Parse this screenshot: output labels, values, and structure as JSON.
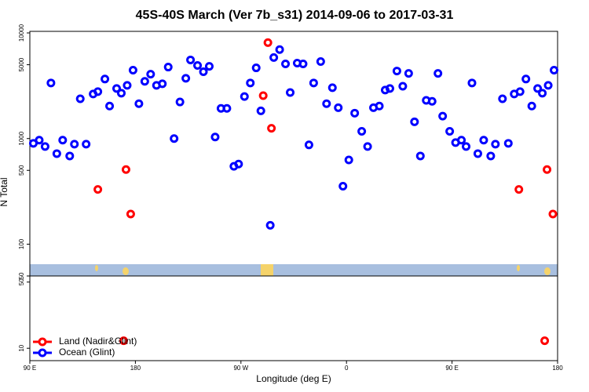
{
  "chart_data": [
    {
      "type": "scatter",
      "title": "45S-40S March (Ver 7b_s31)   2014-09-06 to 2017-03-31",
      "ylabel": "N Total",
      "xlim": [
        90,
        540
      ],
      "ylim": [
        50,
        10000
      ],
      "log_y": true,
      "yticks": [
        50,
        100,
        500,
        1000,
        5000,
        10000
      ],
      "series": [
        {
          "color": "#0000ff",
          "x": [
            93,
            98,
            103,
            108,
            113,
            118,
            124,
            128,
            133,
            138,
            144,
            148,
            154,
            158,
            164,
            168,
            173,
            178,
            183,
            188,
            193,
            198,
            203,
            208,
            213,
            218,
            223,
            227,
            233,
            238,
            243,
            248,
            253,
            258,
            264,
            268,
            273,
            278,
            283,
            287,
            295,
            298,
            303,
            308,
            312,
            318,
            323,
            328,
            332,
            338,
            343,
            348,
            353,
            357,
            362,
            367,
            373,
            378,
            383,
            388,
            393,
            397,
            403,
            408,
            413,
            418,
            423,
            428,
            433,
            438,
            442,
            448,
            453,
            458,
            462,
            467,
            472,
            477,
            483,
            487,
            493,
            498,
            503,
            508,
            513,
            518,
            523,
            527,
            532,
            537
          ],
          "values": [
            901,
            966,
            841,
            3360,
            720,
            966,
            684,
            885,
            2380,
            885,
            2640,
            2780,
            3660,
            2030,
            2980,
            2690,
            3190,
            4440,
            2140,
            3480,
            4070,
            3190,
            3300,
            4750,
            1000,
            2220,
            3720,
            5550,
            4920,
            4290,
            4830,
            1035,
            1930,
            1930,
            546,
            574,
            2500,
            3360,
            4670,
            1830,
            151,
            5850,
            6950,
            5090,
            2730,
            5180,
            5090,
            871,
            3360,
            5360,
            2140,
            3030,
            1960,
            354,
            627,
            1740,
            1170,
            841,
            1960,
            2030,
            2880,
            2980,
            4360,
            3130,
            4140,
            1440,
            684,
            2300,
            2250,
            4140,
            1630,
            1170,
            916,
            966,
            841,
            3360,
            720,
            966,
            684,
            885,
            2380,
            901,
            2640,
            2780,
            3660,
            2030,
            2980,
            2690,
            3190,
            4440
          ]
        },
        {
          "color": "#ff0000",
          "x": [
            148,
            172,
            176,
            289,
            293,
            296,
            507,
            531,
            536
          ],
          "values": [
            330,
            509,
            193,
            2550,
            8100,
            1250,
            330,
            509,
            193
          ]
        }
      ]
    },
    {
      "type": "scatter",
      "xlabel": "Longitude (deg E)",
      "xlim": [
        90,
        540
      ],
      "ylim": [
        7.4,
        58
      ],
      "log_y": true,
      "yticks": [
        10,
        50
      ],
      "xticks": [
        {
          "value": 90,
          "label": "90 E"
        },
        {
          "value": 180,
          "label": "180"
        },
        {
          "value": 270,
          "label": "90 W"
        },
        {
          "value": 360,
          "label": "0"
        },
        {
          "value": 450,
          "label": "90 E"
        },
        {
          "value": 540,
          "label": "180"
        }
      ],
      "legend": "lower left",
      "series": [
        {
          "name": "Land (Nadir&Glint)",
          "color": "#ff0000",
          "x": [
            170,
            529
          ],
          "values": [
            12,
            12
          ]
        },
        {
          "name": "Ocean (Glint)",
          "color": "#0000ff",
          "x": [],
          "values": []
        }
      ]
    }
  ]
}
